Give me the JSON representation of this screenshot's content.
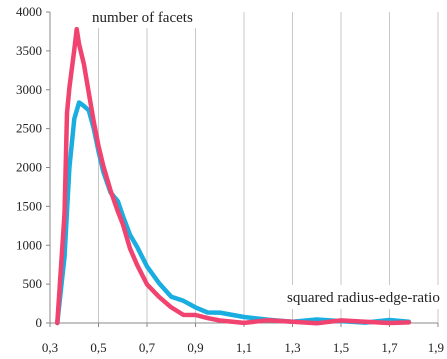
{
  "chart_data": {
    "type": "line",
    "title": "",
    "ylabel_annotation": "number of facets",
    "xlabel_annotation": "squared radius-edge-ratio",
    "xlim": [
      0.3,
      1.9
    ],
    "ylim": [
      0,
      4000
    ],
    "x_ticks": [
      "0,3",
      "0,5",
      "0,7",
      "0,9",
      "1,1",
      "1,3",
      "1,5",
      "1,7",
      "1,9"
    ],
    "x_tick_values": [
      0.3,
      0.5,
      0.7,
      0.9,
      1.1,
      1.3,
      1.5,
      1.7,
      1.9
    ],
    "y_ticks": [
      "0",
      "500",
      "1000",
      "1500",
      "2000",
      "2500",
      "3000",
      "3500",
      "4000"
    ],
    "y_tick_values": [
      0,
      500,
      1000,
      1500,
      2000,
      2500,
      3000,
      3500,
      4000
    ],
    "grid": "vertical",
    "series": [
      {
        "color": "#1aaee0",
        "x": [
          0.33,
          0.36,
          0.38,
          0.4,
          0.42,
          0.44,
          0.46,
          0.48,
          0.5,
          0.52,
          0.55,
          0.58,
          0.6,
          0.63,
          0.66,
          0.7,
          0.75,
          0.8,
          0.85,
          0.9,
          0.95,
          1.0,
          1.1,
          1.2,
          1.3,
          1.4,
          1.5,
          1.6,
          1.7,
          1.78
        ],
        "y": [
          0,
          850,
          2000,
          2650,
          2820,
          2790,
          2750,
          2480,
          2200,
          1950,
          1700,
          1550,
          1380,
          1150,
          950,
          720,
          520,
          360,
          270,
          200,
          150,
          110,
          70,
          50,
          40,
          30,
          25,
          20,
          15,
          15
        ]
      },
      {
        "color": "#f0436f",
        "x": [
          0.33,
          0.36,
          0.37,
          0.38,
          0.4,
          0.41,
          0.42,
          0.44,
          0.46,
          0.48,
          0.5,
          0.52,
          0.55,
          0.58,
          0.6,
          0.63,
          0.66,
          0.7,
          0.75,
          0.8,
          0.85,
          0.9,
          0.95,
          1.0,
          1.1,
          1.2,
          1.3,
          1.4,
          1.5,
          1.6,
          1.7,
          1.78
        ],
        "y": [
          0,
          1400,
          2700,
          3050,
          3500,
          3780,
          3600,
          3300,
          2950,
          2600,
          2300,
          2000,
          1700,
          1450,
          1250,
          950,
          750,
          520,
          320,
          200,
          120,
          80,
          55,
          40,
          25,
          20,
          15,
          12,
          10,
          8,
          8,
          8
        ]
      }
    ]
  }
}
